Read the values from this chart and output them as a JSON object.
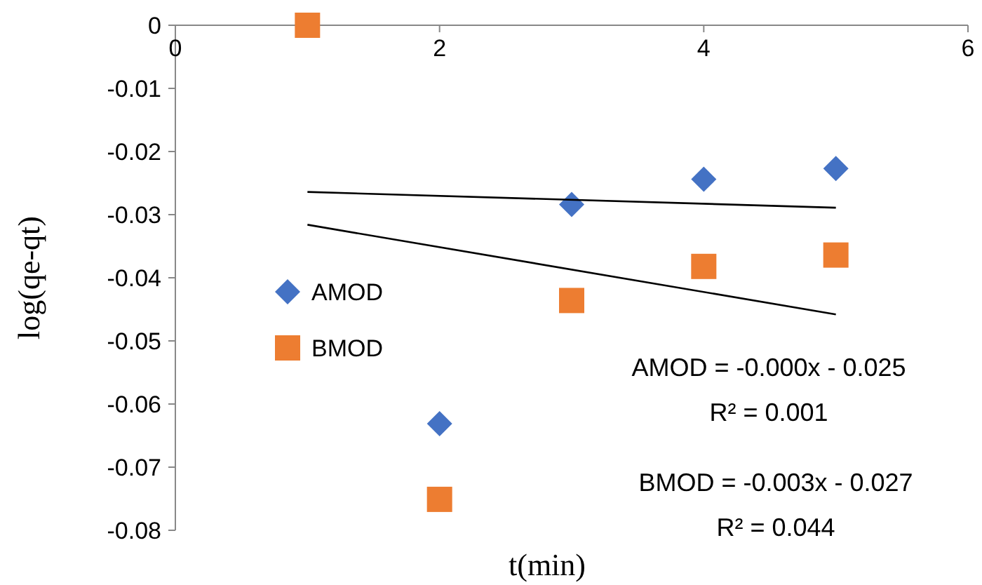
{
  "chart_data": {
    "type": "scatter",
    "xlabel": "t(min)",
    "ylabel": "log(qe-qt)",
    "xlim": [
      0,
      6
    ],
    "xticks": [
      0,
      2,
      4,
      6
    ],
    "ylim": [
      -0.08,
      0
    ],
    "yticks": [
      0,
      -0.01,
      -0.02,
      -0.03,
      -0.04,
      -0.05,
      -0.06,
      -0.07,
      -0.08
    ],
    "grid": false,
    "legend": "left",
    "series": [
      {
        "name": "AMOD",
        "marker": "diamond",
        "color": "#4472c4",
        "x": [
          2,
          3,
          4,
          5
        ],
        "values": [
          -0.0631,
          -0.0284,
          -0.0244,
          -0.0227
        ]
      },
      {
        "name": "BMOD",
        "marker": "square",
        "color": "#ed7d31",
        "x": [
          1,
          2,
          3,
          4,
          5
        ],
        "values": [
          0,
          -0.0751,
          -0.0436,
          -0.0382,
          -0.0364
        ]
      },
      {
        "type": "line",
        "color": "#000000",
        "x": [
          1,
          5
        ],
        "values": [
          -0.0264,
          -0.0289
        ]
      },
      {
        "type": "line",
        "color": "#000000",
        "x": [
          1,
          5
        ],
        "values": [
          -0.0316,
          -0.0458
        ]
      }
    ],
    "annotations": [
      "AMOD = -0.000x - 0.025",
      "R² = 0.001",
      "BMOD = -0.003x - 0.027",
      "R² = 0.044"
    ]
  }
}
